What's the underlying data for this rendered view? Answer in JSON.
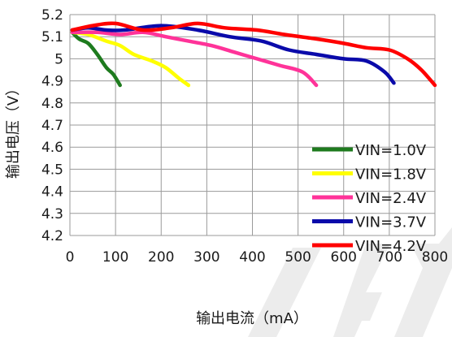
{
  "chart_data": {
    "type": "line",
    "xlabel": "输出电流（mA）",
    "ylabel": "输出电压（V）",
    "xlim": [
      0,
      800
    ],
    "ylim": [
      4.2,
      5.2
    ],
    "x_ticks": [
      "0",
      "100",
      "200",
      "300",
      "400",
      "500",
      "600",
      "700",
      "800"
    ],
    "y_ticks": [
      "4.2",
      "4.3",
      "4.4",
      "4.5",
      "4.6",
      "4.7",
      "4.8",
      "4.9",
      "5",
      "5.1",
      "5.2"
    ],
    "grid": true,
    "legend_position": "bottom-right",
    "series": [
      {
        "name": "VIN=1.0V",
        "color": "#1e7b1e",
        "points": [
          [
            5,
            5.12
          ],
          [
            20,
            5.09
          ],
          [
            40,
            5.07
          ],
          [
            60,
            5.02
          ],
          [
            80,
            4.96
          ],
          [
            95,
            4.93
          ],
          [
            110,
            4.88
          ]
        ]
      },
      {
        "name": "VIN=1.8V",
        "color": "#ffff00",
        "points": [
          [
            5,
            5.12
          ],
          [
            40,
            5.11
          ],
          [
            80,
            5.08
          ],
          [
            110,
            5.06
          ],
          [
            140,
            5.02
          ],
          [
            180,
            4.99
          ],
          [
            210,
            4.96
          ],
          [
            240,
            4.91
          ],
          [
            260,
            4.88
          ]
        ]
      },
      {
        "name": "VIN=2.4V",
        "color": "#ff3399",
        "points": [
          [
            5,
            5.12
          ],
          [
            60,
            5.12
          ],
          [
            110,
            5.11
          ],
          [
            160,
            5.12
          ],
          [
            210,
            5.1
          ],
          [
            260,
            5.08
          ],
          [
            310,
            5.06
          ],
          [
            360,
            5.03
          ],
          [
            410,
            5.0
          ],
          [
            460,
            4.97
          ],
          [
            510,
            4.94
          ],
          [
            540,
            4.88
          ]
        ]
      },
      {
        "name": "VIN=3.7V",
        "color": "#0a0aaa",
        "points": [
          [
            5,
            5.13
          ],
          [
            40,
            5.14
          ],
          [
            80,
            5.13
          ],
          [
            120,
            5.13
          ],
          [
            200,
            5.15
          ],
          [
            280,
            5.13
          ],
          [
            350,
            5.1
          ],
          [
            420,
            5.08
          ],
          [
            480,
            5.04
          ],
          [
            540,
            5.02
          ],
          [
            600,
            5.0
          ],
          [
            650,
            4.99
          ],
          [
            690,
            4.94
          ],
          [
            710,
            4.89
          ]
        ]
      },
      {
        "name": "VIN=4.2V",
        "color": "#ff0000",
        "points": [
          [
            5,
            5.13
          ],
          [
            50,
            5.15
          ],
          [
            100,
            5.16
          ],
          [
            160,
            5.13
          ],
          [
            220,
            5.14
          ],
          [
            280,
            5.16
          ],
          [
            340,
            5.14
          ],
          [
            410,
            5.13
          ],
          [
            470,
            5.11
          ],
          [
            540,
            5.09
          ],
          [
            600,
            5.07
          ],
          [
            650,
            5.05
          ],
          [
            700,
            5.04
          ],
          [
            740,
            5.0
          ],
          [
            770,
            4.95
          ],
          [
            800,
            4.88
          ]
        ]
      }
    ]
  }
}
